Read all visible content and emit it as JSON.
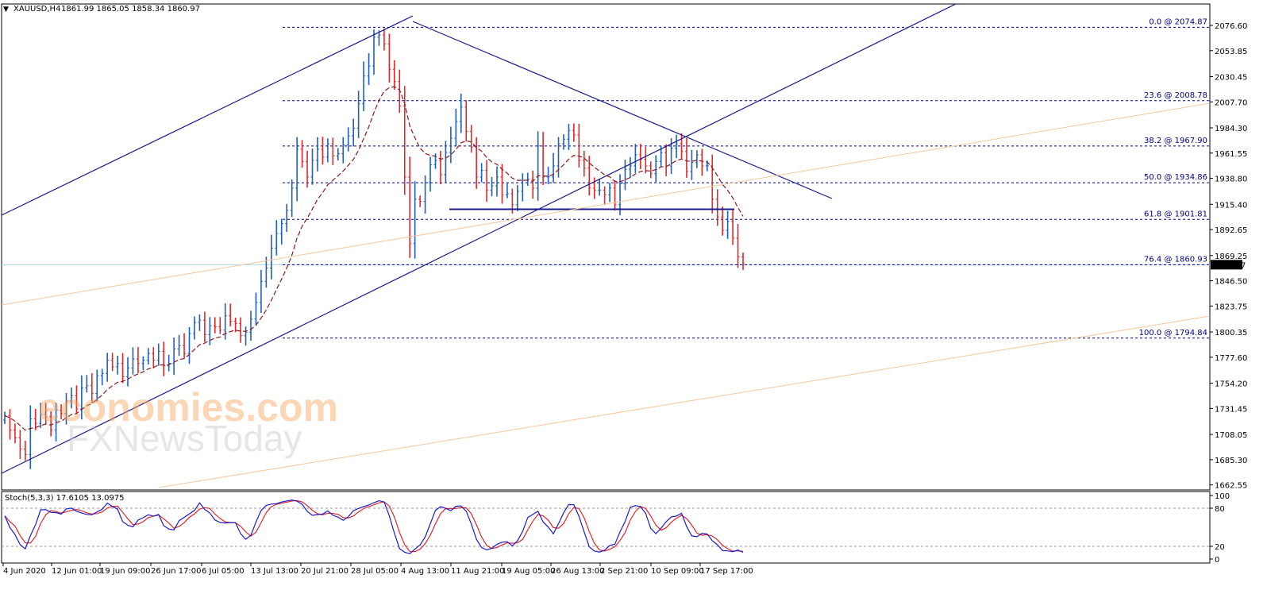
{
  "chart_data": {
    "type": "candlestick",
    "symbol": "XAUUSD,H4",
    "ohlc_header": "1861.99 1865.05 1858.34 1860.97",
    "price_axis": {
      "min": 1655,
      "max": 2085,
      "ticks": [
        "2076.60",
        "2053.85",
        "2030.45",
        "2007.70",
        "1984.30",
        "1961.55",
        "1938.80",
        "1915.40",
        "1892.65",
        "1869.25",
        "1846.50",
        "1823.75",
        "1800.35",
        "1777.60",
        "1754.20",
        "1731.45",
        "1708.05",
        "1685.30",
        "1662.55"
      ],
      "current_price": "1860.97"
    },
    "time_axis": {
      "labels": [
        "4 Jun 2020",
        "12 Jun 01:00",
        "19 Jun 09:00",
        "26 Jun 17:00",
        "6 Jul 05:00",
        "13 Jul 13:00",
        "20 Jul 21:00",
        "28 Jul 05:00",
        "4 Aug 13:00",
        "11 Aug 21:00",
        "19 Aug 05:00",
        "26 Aug 13:00",
        "2 Sep 21:00",
        "10 Sep 09:00",
        "17 Sep 17:00"
      ]
    },
    "fibonacci": [
      {
        "label": "0.0 @ 2074.87",
        "price": 2074.87
      },
      {
        "label": "23.6 @ 2008.78",
        "price": 2008.78
      },
      {
        "label": "38.2 @ 1967.90",
        "price": 1967.9
      },
      {
        "label": "50.0 @ 1934.86",
        "price": 1934.86
      },
      {
        "label": "61.8 @ 1901.81",
        "price": 1901.81
      },
      {
        "label": "76.4 @ 1860.93",
        "price": 1860.93
      },
      {
        "label": "100.0 @ 1794.84",
        "price": 1794.84
      }
    ],
    "support_level": 1911,
    "close_series": [
      1725,
      1712,
      1705,
      1695,
      1690,
      1722,
      1718,
      1726,
      1724,
      1712,
      1730,
      1727,
      1738,
      1743,
      1731,
      1750,
      1752,
      1745,
      1761,
      1763,
      1775,
      1769,
      1772,
      1760,
      1768,
      1776,
      1772,
      1775,
      1781,
      1775,
      1783,
      1770,
      1772,
      1785,
      1788,
      1781,
      1799,
      1809,
      1811,
      1798,
      1806,
      1805,
      1802,
      1815,
      1810,
      1808,
      1797,
      1800,
      1812,
      1827,
      1846,
      1858,
      1876,
      1889,
      1898,
      1910,
      1930,
      1965,
      1954,
      1940,
      1955,
      1965,
      1958,
      1970,
      1959,
      1961,
      1969,
      1977,
      1984,
      2006,
      2031,
      2040,
      2066,
      2068,
      2060,
      2037,
      2026,
      2004,
      1940,
      1880,
      1920,
      1918,
      1935,
      1951,
      1955,
      1942,
      1962,
      1975,
      1990,
      2003,
      1981,
      1967,
      1940,
      1946,
      1928,
      1932,
      1940,
      1924,
      1925,
      1915,
      1927,
      1937,
      1938,
      1930,
      1968,
      1940,
      1940,
      1950,
      1970,
      1974,
      1982,
      1978,
      1955,
      1948,
      1930,
      1928,
      1928,
      1924,
      1930,
      1915,
      1934,
      1947,
      1950,
      1960,
      1956,
      1950,
      1943,
      1954,
      1962,
      1950,
      1966,
      1970,
      1963,
      1945,
      1953,
      1960,
      1950,
      1950,
      1920,
      1904,
      1892,
      1900,
      1885,
      1868,
      1862
    ],
    "stochastic": {
      "label": "Stoch(5,3,3) 17.6105 13.0975",
      "levels": [
        80,
        20
      ],
      "axis_ticks": [
        "100",
        "80",
        "20",
        "0"
      ]
    },
    "watermark": {
      "line1": "economies.com",
      "line2": "FXNewsToday"
    }
  }
}
